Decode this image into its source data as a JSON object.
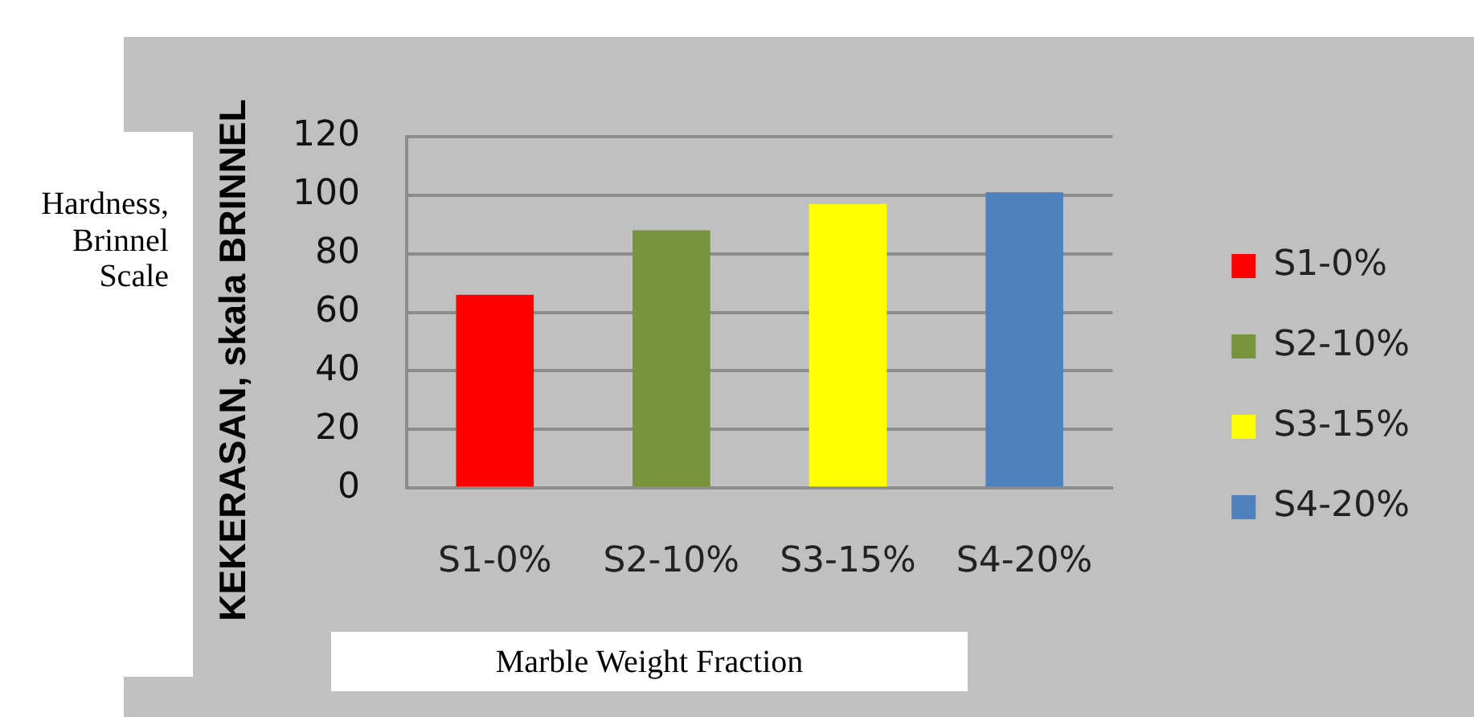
{
  "chart_data": {
    "type": "bar",
    "xlabel": "Marble Weight Fraction",
    "ylabel": "KEKERASAN, skala BRINNEL",
    "annotations": [
      "Hardness, Brinnel Scale"
    ],
    "categories": [
      "S1-0%",
      "S2-10%",
      "S3-15%",
      "S4-20%"
    ],
    "series": [
      {
        "name": "S1-0%",
        "color": "#ff0000",
        "values": [
          66,
          null,
          null,
          null
        ]
      },
      {
        "name": "S2-10%",
        "color": "#77933c",
        "values": [
          null,
          88,
          null,
          null
        ]
      },
      {
        "name": "S3-15%",
        "color": "#ffff00",
        "values": [
          null,
          null,
          97,
          null
        ]
      },
      {
        "name": "S4-20%",
        "color": "#4f81bd",
        "values": [
          null,
          null,
          null,
          101
        ]
      }
    ],
    "ylim": [
      0,
      120
    ],
    "yticks": [
      0,
      20,
      40,
      60,
      80,
      100,
      120
    ],
    "grid": "y",
    "legend": "right"
  }
}
